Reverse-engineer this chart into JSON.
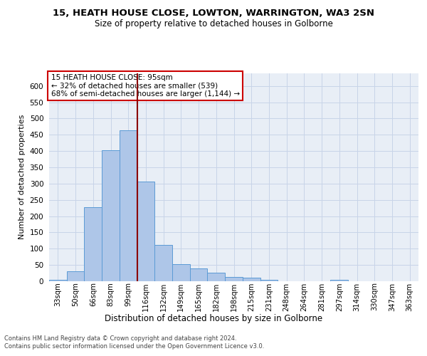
{
  "title": "15, HEATH HOUSE CLOSE, LOWTON, WARRINGTON, WA3 2SN",
  "subtitle": "Size of property relative to detached houses in Golborne",
  "xlabel": "Distribution of detached houses by size in Golborne",
  "ylabel": "Number of detached properties",
  "footer_line1": "Contains HM Land Registry data © Crown copyright and database right 2024.",
  "footer_line2": "Contains public sector information licensed under the Open Government Licence v3.0.",
  "categories": [
    "33sqm",
    "50sqm",
    "66sqm",
    "83sqm",
    "99sqm",
    "116sqm",
    "132sqm",
    "149sqm",
    "165sqm",
    "182sqm",
    "198sqm",
    "215sqm",
    "231sqm",
    "248sqm",
    "264sqm",
    "281sqm",
    "297sqm",
    "314sqm",
    "330sqm",
    "347sqm",
    "363sqm"
  ],
  "values": [
    5,
    30,
    228,
    402,
    464,
    307,
    111,
    53,
    40,
    26,
    13,
    11,
    5,
    0,
    0,
    0,
    5,
    0,
    0,
    0,
    0
  ],
  "bar_color": "#aec6e8",
  "bar_edge_color": "#5b9bd5",
  "grid_color": "#c8d4e8",
  "background_color": "#e8eef6",
  "ylim": [
    0,
    640
  ],
  "yticks": [
    0,
    50,
    100,
    150,
    200,
    250,
    300,
    350,
    400,
    450,
    500,
    550,
    600
  ],
  "vline_x": 4.5,
  "vline_color": "#8b0000",
  "annotation_line1": "15 HEATH HOUSE CLOSE: 95sqm",
  "annotation_line2": "← 32% of detached houses are smaller (539)",
  "annotation_line3": "68% of semi-detached houses are larger (1,144) →",
  "annotation_box_edgecolor": "#cc0000"
}
